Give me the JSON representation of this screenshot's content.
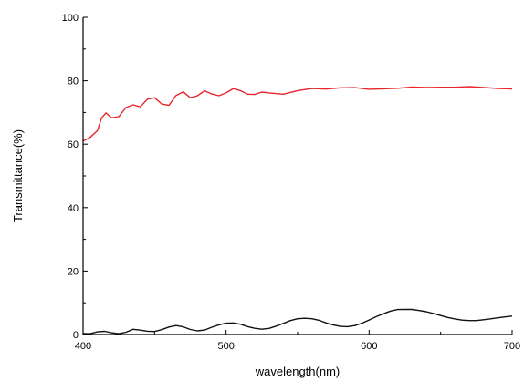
{
  "chart_data": {
    "type": "line",
    "xlabel": "wavelength(nm)",
    "ylabel": "Transmittance(%)",
    "xlim": [
      400,
      700
    ],
    "ylim": [
      0,
      100
    ],
    "x_ticks": [
      400,
      500,
      600,
      700
    ],
    "y_ticks": [
      0,
      20,
      40,
      60,
      80,
      100
    ],
    "grid": false,
    "legend": "none",
    "series": [
      {
        "color": "#e8262c",
        "x": [
          400,
          405,
          410,
          413,
          416,
          420,
          425,
          430,
          435,
          440,
          445,
          450,
          455,
          460,
          465,
          470,
          475,
          480,
          485,
          490,
          495,
          500,
          505,
          510,
          515,
          520,
          525,
          530,
          540,
          550,
          560,
          570,
          580,
          590,
          600,
          610,
          620,
          630,
          640,
          650,
          660,
          670,
          680,
          690,
          700
        ],
        "y": [
          61,
          62,
          64,
          68,
          69.5,
          68,
          68.5,
          71.5,
          72.5,
          72,
          74.5,
          75,
          73,
          72.5,
          75.5,
          76.5,
          74.5,
          75,
          76.5,
          75.5,
          75,
          76,
          77.5,
          77,
          76,
          76,
          76.8,
          76.5,
          76,
          77,
          77.5,
          77.2,
          77.5,
          77.5,
          77,
          77.2,
          77.5,
          78,
          78,
          78.2,
          78.3,
          78.5,
          78.2,
          77.8,
          77.5
        ]
      },
      {
        "color": "#111111",
        "x": [
          400,
          405,
          410,
          415,
          420,
          425,
          430,
          435,
          440,
          445,
          450,
          455,
          460,
          465,
          470,
          475,
          480,
          485,
          490,
          495,
          500,
          505,
          510,
          515,
          520,
          525,
          530,
          535,
          540,
          545,
          550,
          555,
          560,
          565,
          570,
          575,
          580,
          585,
          590,
          595,
          600,
          605,
          610,
          615,
          620,
          625,
          630,
          635,
          640,
          645,
          650,
          655,
          660,
          665,
          670,
          675,
          680,
          685,
          690,
          695,
          700
        ],
        "y": [
          0.2,
          0.3,
          1,
          1.3,
          0.9,
          0.6,
          1,
          1.8,
          1.4,
          0.9,
          0.7,
          1.2,
          2,
          2.5,
          2.2,
          1.5,
          1.2,
          1.6,
          2.6,
          3.4,
          3.9,
          3.9,
          3.4,
          2.5,
          1.8,
          1.4,
          1.6,
          2.3,
          3.2,
          4.2,
          4.9,
          5.2,
          5.2,
          4.8,
          4,
          3.3,
          2.8,
          2.6,
          2.8,
          3.4,
          4.3,
          5.3,
          6.2,
          7.1,
          7.7,
          7.9,
          8,
          7.8,
          7.5,
          7,
          6.3,
          5.6,
          5,
          4.5,
          4.2,
          4.1,
          4.3,
          4.6,
          5,
          5.4,
          5.8
        ]
      }
    ]
  }
}
